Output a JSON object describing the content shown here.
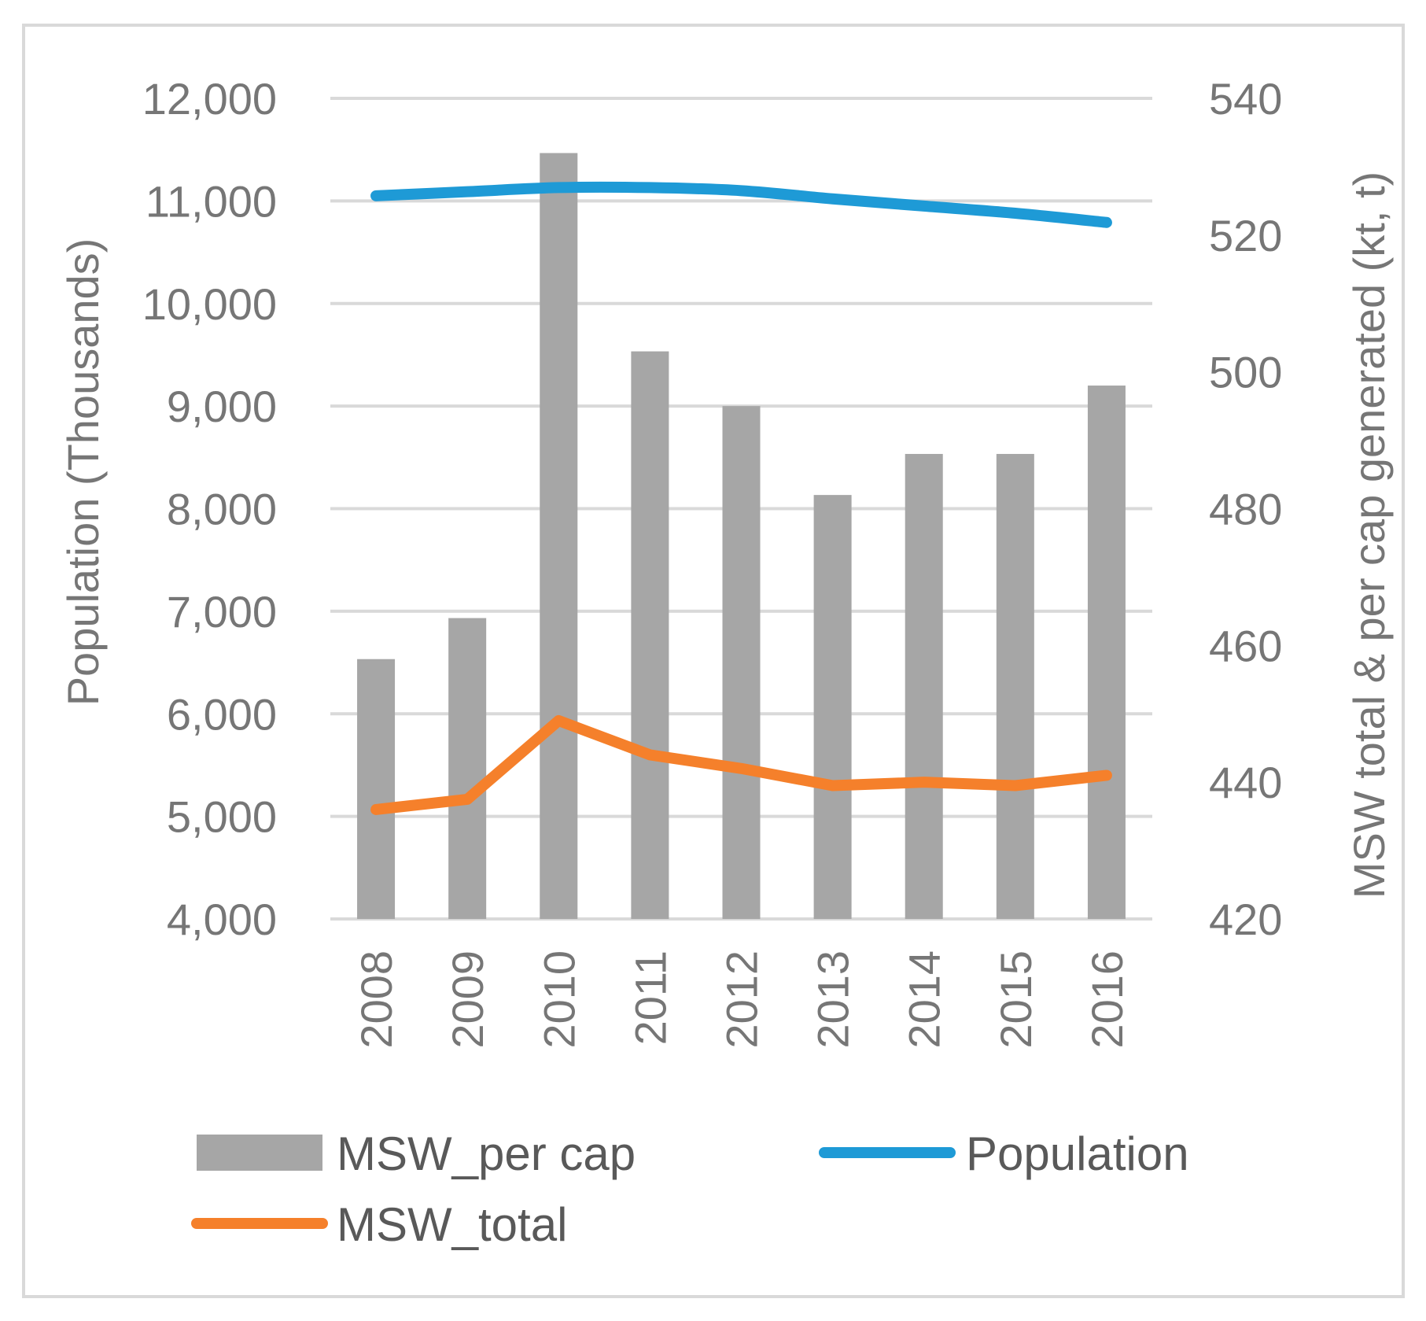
{
  "chart_data": {
    "type": "bar",
    "categories": [
      "2008",
      "2009",
      "2010",
      "2011",
      "2012",
      "2013",
      "2014",
      "2015",
      "2016"
    ],
    "series": [
      {
        "name": "MSW_per cap",
        "type": "bar",
        "axis": "right",
        "values": [
          458,
          464,
          532,
          503,
          495,
          482,
          488,
          488,
          498
        ],
        "color": "#a6a6a6"
      },
      {
        "name": "Population",
        "type": "line",
        "axis": "left",
        "values": [
          11050,
          11090,
          11130,
          11130,
          11100,
          11020,
          10950,
          10880,
          10790
        ],
        "color": "#1e9ad6"
      },
      {
        "name": "MSW_total",
        "type": "line",
        "axis": "right",
        "values": [
          436,
          437.5,
          449,
          444,
          442,
          439.5,
          440,
          439.5,
          441
        ],
        "color": "#f5802b"
      }
    ],
    "ylabel": "Population (Thousands)",
    "y2label": "MSW total & per cap generated (kt, t)",
    "ylim": [
      4000,
      12000
    ],
    "y2lim": [
      420,
      540
    ],
    "yticks": [
      "4,000",
      "5,000",
      "6,000",
      "7,000",
      "8,000",
      "9,000",
      "10,000",
      "11,000",
      "12,000"
    ],
    "y2ticks": [
      "420",
      "440",
      "460",
      "480",
      "500",
      "520",
      "540"
    ],
    "grid": true,
    "legend": "bottom"
  }
}
